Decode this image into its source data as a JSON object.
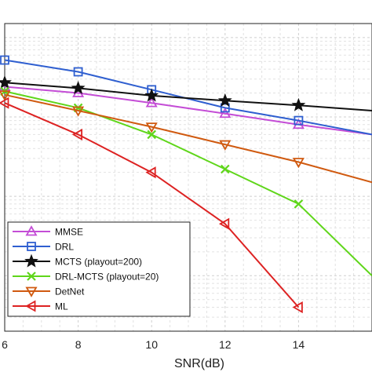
{
  "chart_data": {
    "type": "line",
    "xlabel": "SNR(dB)",
    "x_ticks": [
      6,
      8,
      10,
      12,
      14
    ],
    "xlim": [
      6,
      16
    ],
    "y_scale": "log",
    "grid": true,
    "legend_position": "bottom-left",
    "series": [
      {
        "name": "MMSE",
        "color": "#c44dd6",
        "marker": "triangle-up",
        "x": [
          6,
          8,
          10,
          12,
          14,
          16
        ],
        "y": [
          0.24,
          0.2,
          0.15,
          0.11,
          0.08,
          0.06
        ]
      },
      {
        "name": "DRL",
        "color": "#2f5fd0",
        "marker": "square",
        "x": [
          6,
          8,
          10,
          12,
          14,
          16
        ],
        "y": [
          0.52,
          0.37,
          0.22,
          0.13,
          0.09,
          0.06
        ]
      },
      {
        "name": "MCTS (playout=200)",
        "color": "#111111",
        "marker": "star",
        "x": [
          6,
          8,
          10,
          12,
          14,
          16
        ],
        "y": [
          0.27,
          0.23,
          0.185,
          0.16,
          0.14,
          0.12
        ]
      },
      {
        "name": "DRL-MCTS (playout=20)",
        "color": "#5fd61a",
        "marker": "x",
        "x": [
          6,
          8,
          10,
          12,
          14,
          16
        ],
        "y": [
          0.21,
          0.13,
          0.06,
          0.022,
          0.008,
          0.001
        ]
      },
      {
        "name": "DetNet",
        "color": "#d05a10",
        "marker": "triangle-down",
        "x": [
          6,
          8,
          10,
          12,
          14,
          16
        ],
        "y": [
          0.19,
          0.12,
          0.075,
          0.045,
          0.027,
          0.015
        ]
      },
      {
        "name": "ML",
        "color": "#dd2222",
        "marker": "triangle-left",
        "x": [
          6,
          8,
          10,
          12,
          14
        ],
        "y": [
          0.15,
          0.06,
          0.02,
          0.0045,
          0.0004
        ]
      }
    ]
  }
}
